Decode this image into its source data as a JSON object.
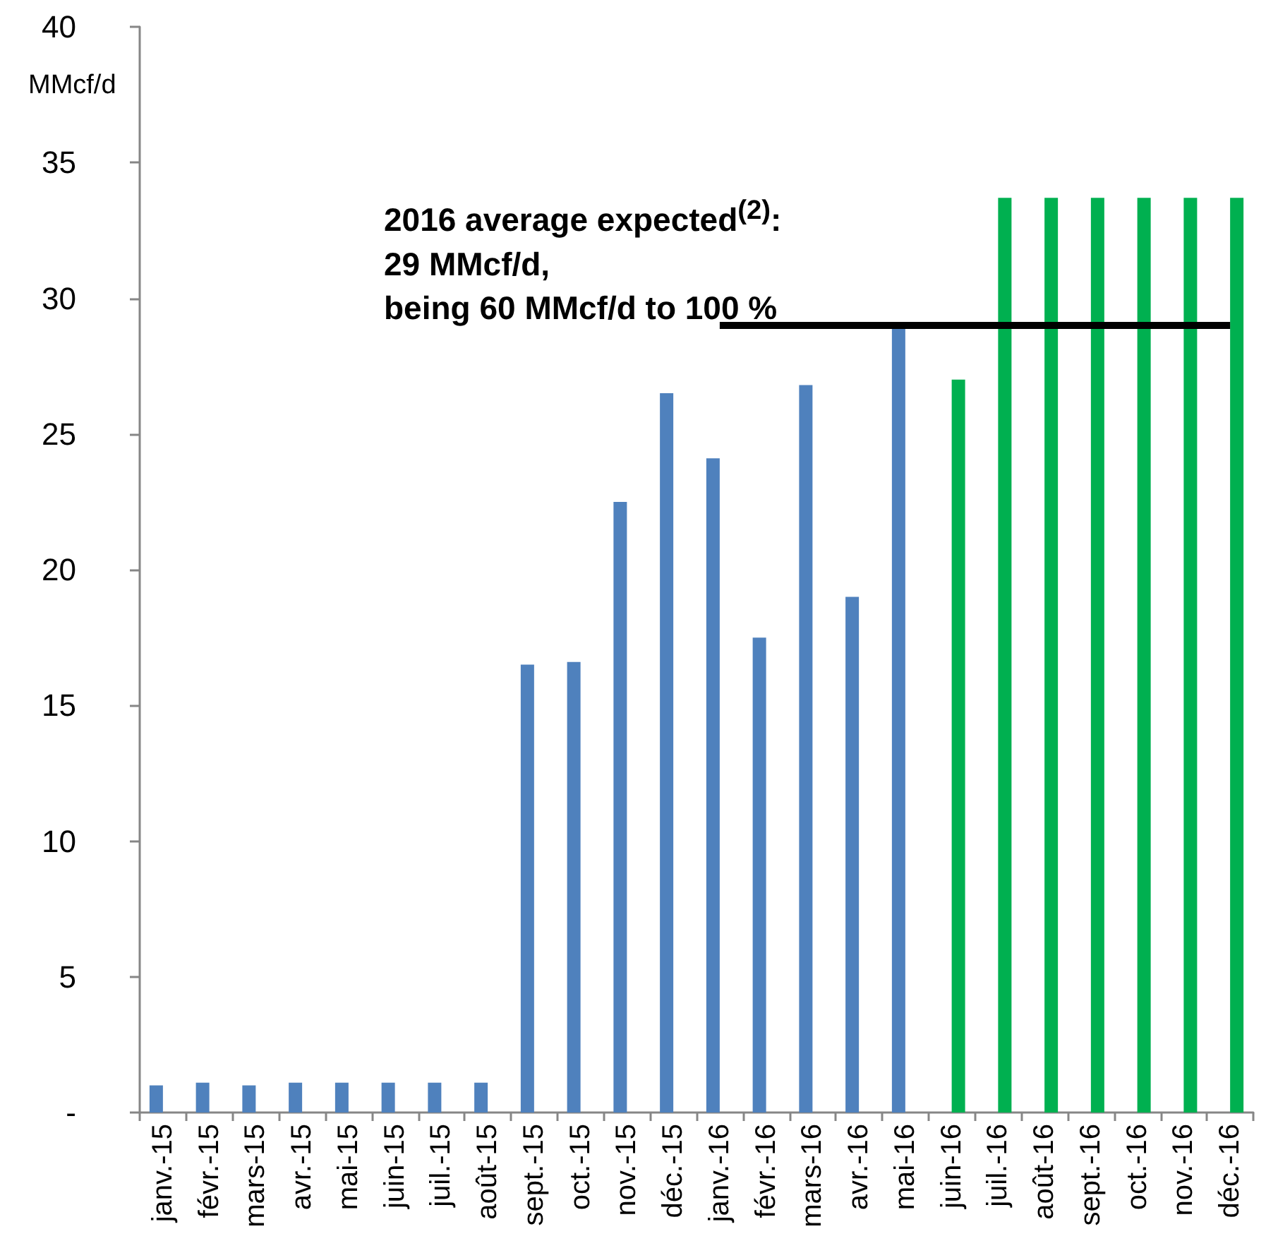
{
  "chart_data": {
    "type": "bar",
    "categories": [
      "janv.-15",
      "févr.-15",
      "mars-15",
      "avr.-15",
      "mai-15",
      "juin-15",
      "juil.-15",
      "août-15",
      "sept.-15",
      "oct.-15",
      "nov.-15",
      "déc.-15",
      "janv.-16",
      "févr.-16",
      "mars-16",
      "avr.-16",
      "mai-16",
      "juin-16",
      "juil.-16",
      "août-16",
      "sept.-16",
      "oct.-16",
      "nov.-16",
      "déc.-16"
    ],
    "series": [
      {
        "color": "#4f81bd",
        "values": [
          1.0,
          1.1,
          1.0,
          1.1,
          1.1,
          1.1,
          1.1,
          1.1,
          16.5,
          16.6,
          22.5,
          26.5,
          24.1,
          17.5,
          26.8,
          19.0,
          28.9,
          null,
          null,
          null,
          null,
          null,
          null,
          null
        ]
      },
      {
        "color": "#00b050",
        "values": [
          null,
          null,
          null,
          null,
          null,
          null,
          null,
          null,
          null,
          null,
          null,
          null,
          null,
          null,
          null,
          null,
          null,
          27.0,
          33.7,
          33.7,
          33.7,
          33.7,
          33.7,
          33.7
        ]
      },
      {
        "type": "line",
        "color": "#000000",
        "values": [
          null,
          null,
          null,
          null,
          null,
          null,
          null,
          null,
          null,
          null,
          null,
          null,
          29,
          29,
          29,
          29,
          29,
          29,
          29,
          29,
          29,
          29,
          29,
          29
        ]
      }
    ],
    "ylabel": "MMcf/d",
    "ylim": [
      0,
      40
    ],
    "yticks": [
      {
        "value": 0,
        "label": "-"
      },
      5,
      10,
      15,
      20,
      25,
      30,
      35,
      40
    ],
    "annotations": [
      "2016 average expected$^{(2)}$:\n29 MMcf/d,\nbeing 60 MMcf/d to 100 %"
    ],
    "marker": "none",
    "line_style": "solid"
  }
}
